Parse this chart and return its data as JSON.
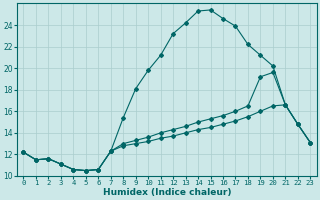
{
  "xlabel": "Humidex (Indice chaleur)",
  "bg_color": "#cce8e8",
  "line_color": "#006666",
  "grid_color": "#aacece",
  "xlim": [
    -0.5,
    23.5
  ],
  "ylim": [
    10,
    26
  ],
  "xticks": [
    0,
    1,
    2,
    3,
    4,
    5,
    6,
    7,
    8,
    9,
    10,
    11,
    12,
    13,
    14,
    15,
    16,
    17,
    18,
    19,
    20,
    21,
    22,
    23
  ],
  "yticks": [
    10,
    12,
    14,
    16,
    18,
    20,
    22,
    24
  ],
  "series": [
    {
      "x": [
        0,
        1,
        2,
        3,
        4,
        5,
        6,
        7,
        8,
        9,
        10,
        11,
        12,
        13,
        14,
        15,
        16,
        17,
        18,
        19,
        20,
        21,
        22,
        23
      ],
      "y": [
        12.2,
        11.5,
        11.6,
        11.1,
        10.6,
        10.5,
        10.6,
        12.3,
        15.4,
        18.1,
        19.8,
        21.2,
        23.2,
        24.2,
        25.3,
        25.4,
        24.6,
        23.9,
        22.2,
        21.2,
        20.2,
        16.6,
        14.8,
        13.1
      ]
    },
    {
      "x": [
        0,
        1,
        2,
        3,
        4,
        5,
        6,
        7,
        8,
        9,
        10,
        11,
        12,
        13,
        14,
        15,
        16,
        17,
        18,
        19,
        20,
        21,
        22,
        23
      ],
      "y": [
        12.2,
        11.5,
        11.6,
        11.1,
        10.6,
        10.5,
        10.6,
        12.3,
        13.0,
        13.3,
        13.6,
        14.0,
        14.3,
        14.6,
        15.0,
        15.3,
        15.6,
        16.0,
        16.5,
        19.2,
        19.6,
        16.6,
        14.8,
        13.1
      ]
    },
    {
      "x": [
        0,
        1,
        2,
        3,
        4,
        5,
        6,
        7,
        8,
        9,
        10,
        11,
        12,
        13,
        14,
        15,
        16,
        17,
        18,
        19,
        20,
        21,
        22,
        23
      ],
      "y": [
        12.2,
        11.5,
        11.6,
        11.1,
        10.6,
        10.5,
        10.6,
        12.3,
        12.8,
        13.0,
        13.2,
        13.5,
        13.7,
        14.0,
        14.3,
        14.5,
        14.8,
        15.1,
        15.5,
        16.0,
        16.5,
        16.6,
        14.8,
        13.1
      ]
    }
  ]
}
